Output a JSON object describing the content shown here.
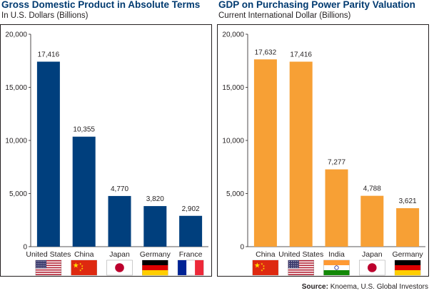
{
  "source": {
    "label": "Source:",
    "text": "Knoema, U.S. Global Investors"
  },
  "chart_data": [
    {
      "type": "bar",
      "title": "Gross Domestic Product in Absolute Terms",
      "subtitle": "In U.S. Dollars (Billions)",
      "categories": [
        "United States",
        "China",
        "Japan",
        "Germany",
        "France"
      ],
      "values": [
        17416,
        10355,
        4770,
        3820,
        2902
      ],
      "data_labels": [
        "17,416",
        "10,355",
        "4,770",
        "3,820",
        "2,902"
      ],
      "flags": [
        "us-flag-icon",
        "china-flag-icon",
        "japan-flag-icon",
        "germany-flag-icon",
        "france-flag-icon"
      ],
      "ylim": [
        0,
        20000
      ],
      "yticks": [
        0,
        5000,
        10000,
        15000,
        20000
      ],
      "ytick_labels": [
        "0",
        "5,000",
        "10,000",
        "15,000",
        "20,000"
      ],
      "color": "#003f7d",
      "grid": false
    },
    {
      "type": "bar",
      "title": "GDP on Purchasing Power Parity Valuation",
      "subtitle": "Current International Dollar (Billions)",
      "categories": [
        "China",
        "United States",
        "India",
        "Japan",
        "Germany"
      ],
      "values": [
        17632,
        17416,
        7277,
        4788,
        3621
      ],
      "data_labels": [
        "17,632",
        "17,416",
        "7,277",
        "4,788",
        "3,621"
      ],
      "flags": [
        "china-flag-icon",
        "us-flag-icon",
        "india-flag-icon",
        "japan-flag-icon",
        "germany-flag-icon"
      ],
      "ylim": [
        0,
        20000
      ],
      "yticks": [
        0,
        5000,
        10000,
        15000,
        20000
      ],
      "ytick_labels": [
        "0",
        "5,000",
        "10,000",
        "15,000",
        "20,000"
      ],
      "color": "#f7a035",
      "grid": false
    }
  ]
}
